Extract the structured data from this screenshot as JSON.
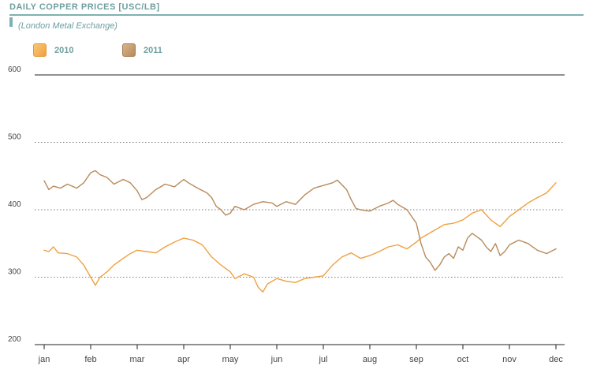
{
  "chart_data": {
    "type": "line",
    "title": "DAILY COPPER PRICES [USC/LB]",
    "subtitle": "(London Metal Exchange)",
    "categories": [
      "jan",
      "feb",
      "mar",
      "apr",
      "may",
      "jun",
      "jul",
      "aug",
      "sep",
      "oct",
      "nov",
      "dec"
    ],
    "y_ticks": [
      "600",
      "500",
      "400",
      "300",
      "200"
    ],
    "ylim": [
      200,
      600
    ],
    "grid": "horizontal dotted",
    "legend": "top-left",
    "series": [
      {
        "name": "2010",
        "color": "#f0a040",
        "points": [
          [
            0.0,
            340
          ],
          [
            0.1,
            338
          ],
          [
            0.2,
            345
          ],
          [
            0.3,
            336
          ],
          [
            0.5,
            335
          ],
          [
            0.7,
            330
          ],
          [
            0.85,
            318
          ],
          [
            1.0,
            300
          ],
          [
            1.1,
            288
          ],
          [
            1.2,
            300
          ],
          [
            1.35,
            308
          ],
          [
            1.5,
            318
          ],
          [
            1.7,
            328
          ],
          [
            1.85,
            335
          ],
          [
            2.0,
            340
          ],
          [
            2.2,
            338
          ],
          [
            2.4,
            336
          ],
          [
            2.6,
            345
          ],
          [
            2.8,
            352
          ],
          [
            3.0,
            358
          ],
          [
            3.2,
            355
          ],
          [
            3.4,
            348
          ],
          [
            3.6,
            330
          ],
          [
            3.8,
            318
          ],
          [
            4.0,
            308
          ],
          [
            4.1,
            298
          ],
          [
            4.3,
            305
          ],
          [
            4.5,
            300
          ],
          [
            4.6,
            285
          ],
          [
            4.7,
            278
          ],
          [
            4.8,
            290
          ],
          [
            5.0,
            298
          ],
          [
            5.2,
            294
          ],
          [
            5.4,
            292
          ],
          [
            5.6,
            298
          ],
          [
            5.8,
            300
          ],
          [
            6.0,
            302
          ],
          [
            6.2,
            318
          ],
          [
            6.4,
            330
          ],
          [
            6.6,
            336
          ],
          [
            6.8,
            328
          ],
          [
            7.0,
            332
          ],
          [
            7.2,
            338
          ],
          [
            7.4,
            345
          ],
          [
            7.6,
            348
          ],
          [
            7.8,
            342
          ],
          [
            8.0,
            352
          ],
          [
            8.1,
            358
          ],
          [
            8.2,
            362
          ],
          [
            8.4,
            370
          ],
          [
            8.6,
            378
          ],
          [
            8.8,
            380
          ],
          [
            9.0,
            385
          ],
          [
            9.2,
            395
          ],
          [
            9.4,
            400
          ],
          [
            9.6,
            385
          ],
          [
            9.8,
            375
          ],
          [
            10.0,
            390
          ],
          [
            10.2,
            400
          ],
          [
            10.4,
            410
          ],
          [
            10.6,
            418
          ],
          [
            10.8,
            425
          ],
          [
            11.0,
            440
          ]
        ]
      },
      {
        "name": "2011",
        "color": "#b88a5a",
        "points": [
          [
            0.0,
            443
          ],
          [
            0.1,
            430
          ],
          [
            0.2,
            435
          ],
          [
            0.35,
            432
          ],
          [
            0.5,
            438
          ],
          [
            0.7,
            432
          ],
          [
            0.85,
            440
          ],
          [
            1.0,
            455
          ],
          [
            1.1,
            458
          ],
          [
            1.2,
            452
          ],
          [
            1.35,
            448
          ],
          [
            1.5,
            438
          ],
          [
            1.7,
            445
          ],
          [
            1.85,
            440
          ],
          [
            2.0,
            428
          ],
          [
            2.1,
            415
          ],
          [
            2.2,
            418
          ],
          [
            2.4,
            430
          ],
          [
            2.6,
            438
          ],
          [
            2.8,
            434
          ],
          [
            3.0,
            445
          ],
          [
            3.1,
            440
          ],
          [
            3.3,
            432
          ],
          [
            3.5,
            425
          ],
          [
            3.6,
            418
          ],
          [
            3.7,
            405
          ],
          [
            3.8,
            400
          ],
          [
            3.9,
            392
          ],
          [
            4.0,
            395
          ],
          [
            4.1,
            405
          ],
          [
            4.3,
            400
          ],
          [
            4.5,
            408
          ],
          [
            4.7,
            412
          ],
          [
            4.9,
            410
          ],
          [
            5.0,
            405
          ],
          [
            5.2,
            412
          ],
          [
            5.4,
            408
          ],
          [
            5.6,
            422
          ],
          [
            5.8,
            432
          ],
          [
            6.0,
            436
          ],
          [
            6.2,
            440
          ],
          [
            6.3,
            444
          ],
          [
            6.5,
            430
          ],
          [
            6.6,
            415
          ],
          [
            6.7,
            402
          ],
          [
            6.8,
            400
          ],
          [
            7.0,
            398
          ],
          [
            7.2,
            405
          ],
          [
            7.4,
            410
          ],
          [
            7.5,
            414
          ],
          [
            7.6,
            408
          ],
          [
            7.8,
            400
          ],
          [
            8.0,
            380
          ],
          [
            8.1,
            350
          ],
          [
            8.2,
            330
          ],
          [
            8.3,
            322
          ],
          [
            8.4,
            310
          ],
          [
            8.5,
            318
          ],
          [
            8.6,
            330
          ],
          [
            8.7,
            335
          ],
          [
            8.8,
            328
          ],
          [
            8.9,
            345
          ],
          [
            9.0,
            340
          ],
          [
            9.1,
            358
          ],
          [
            9.2,
            365
          ],
          [
            9.3,
            360
          ],
          [
            9.4,
            355
          ],
          [
            9.5,
            345
          ],
          [
            9.6,
            338
          ],
          [
            9.7,
            350
          ],
          [
            9.8,
            332
          ],
          [
            9.9,
            338
          ],
          [
            10.0,
            348
          ],
          [
            10.2,
            355
          ],
          [
            10.4,
            350
          ],
          [
            10.6,
            340
          ],
          [
            10.8,
            335
          ],
          [
            11.0,
            342
          ]
        ]
      }
    ]
  }
}
